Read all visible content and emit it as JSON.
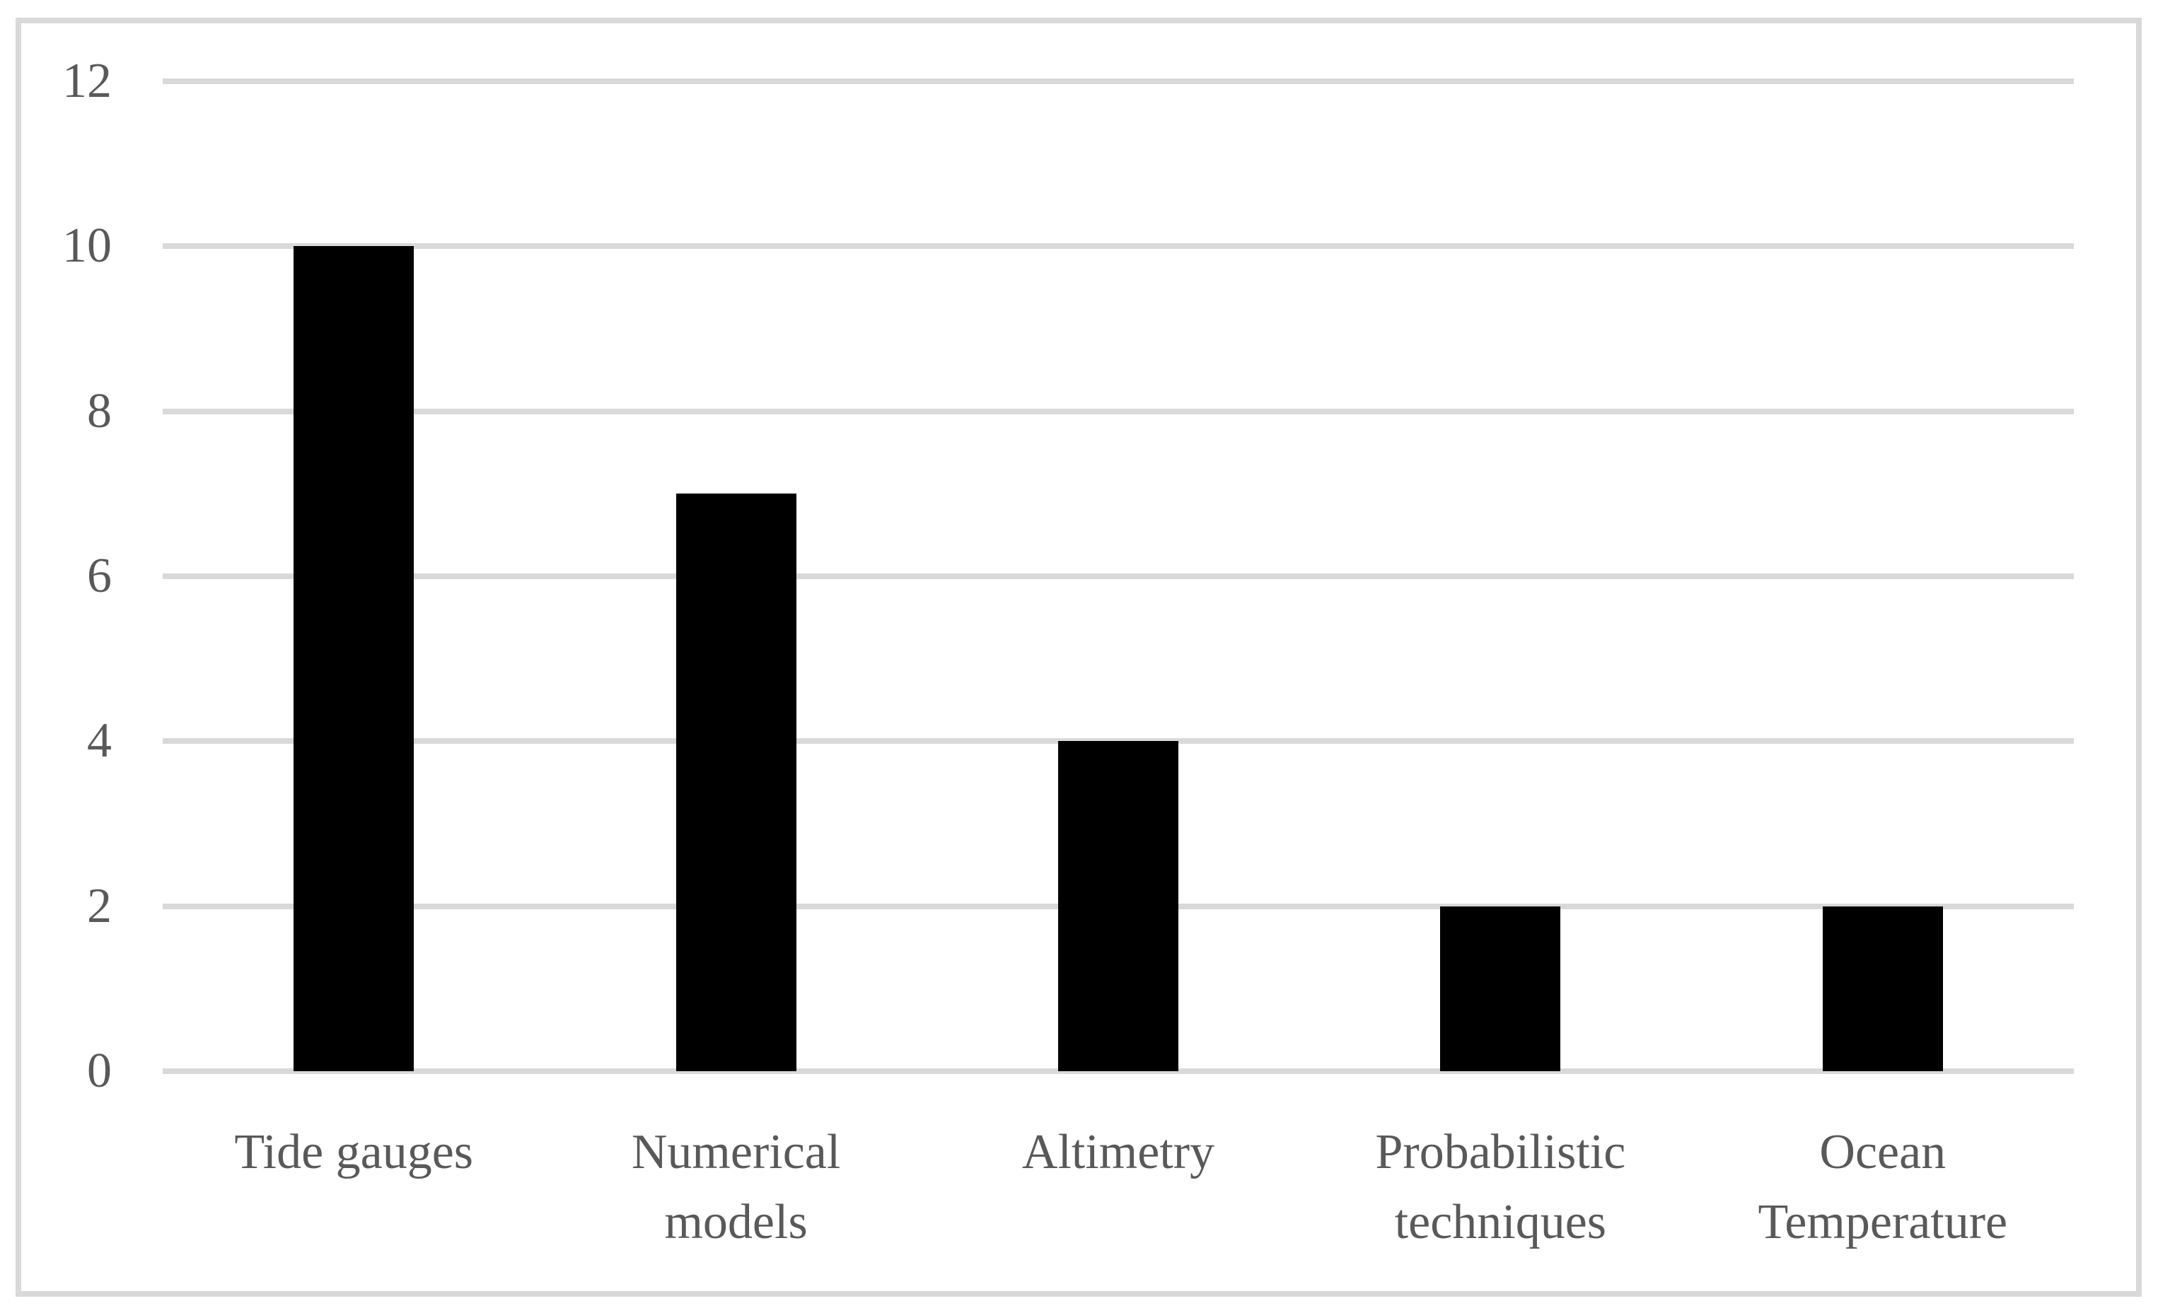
{
  "chart_data": {
    "type": "bar",
    "categories": [
      "Tide gauges",
      "Numerical models",
      "Altimetry",
      "Probabilistic techniques",
      "Ocean Temperature"
    ],
    "category_label_lines": [
      [
        "Tide gauges"
      ],
      [
        "Numerical",
        "models"
      ],
      [
        "Altimetry"
      ],
      [
        "Probabilistic",
        "techniques"
      ],
      [
        "Ocean",
        "Temperature"
      ]
    ],
    "values": [
      10,
      7,
      4,
      2,
      2
    ],
    "title": "",
    "xlabel": "",
    "ylabel": "",
    "ylim": [
      0,
      12
    ],
    "yticks": [
      0,
      2,
      4,
      6,
      8,
      10,
      12
    ],
    "grid": "horizontal",
    "legend": "none"
  },
  "colors": {
    "bar": "#000000",
    "grid": "#d9d9d9",
    "border": "#d9d9d9",
    "text": "#595959",
    "background": "#ffffff"
  }
}
